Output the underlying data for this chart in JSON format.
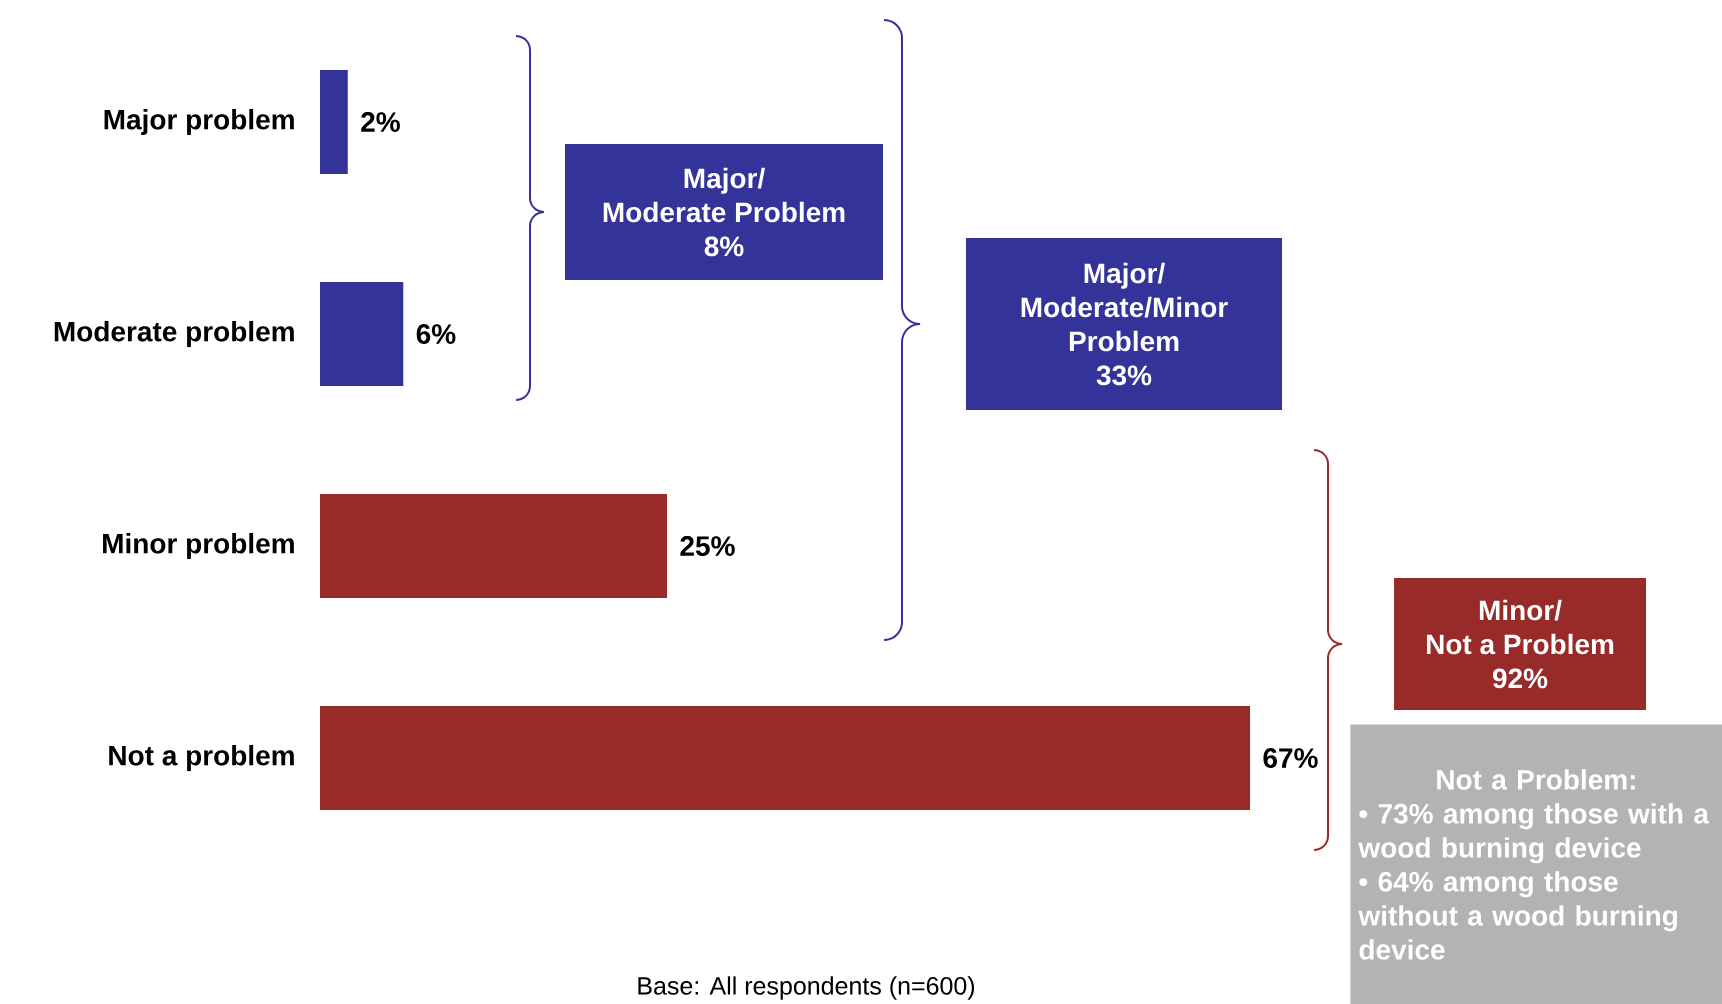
{
  "chart_data": {
    "type": "bar",
    "orientation": "horizontal",
    "categories": [
      "Major problem",
      "Moderate problem",
      "Minor problem",
      "Not a problem"
    ],
    "values": [
      2,
      6,
      25,
      67
    ],
    "colors": [
      "#333399",
      "#333399",
      "#992a2a",
      "#992a2a"
    ],
    "value_labels": [
      "2%",
      "6%",
      "25%",
      "67%"
    ],
    "annotations": [
      "Major/",
      "Moderate Problem",
      "8%",
      "Major/",
      "Moderate/Minor",
      "Problem",
      "33%",
      "Minor/",
      "Not a Problem",
      "92%",
      "Not a Problem:",
      "• 73% among those with a wood burning device",
      "• 64% among those without a wood burning device",
      "Base: All respondents (n=600)"
    ]
  }
}
